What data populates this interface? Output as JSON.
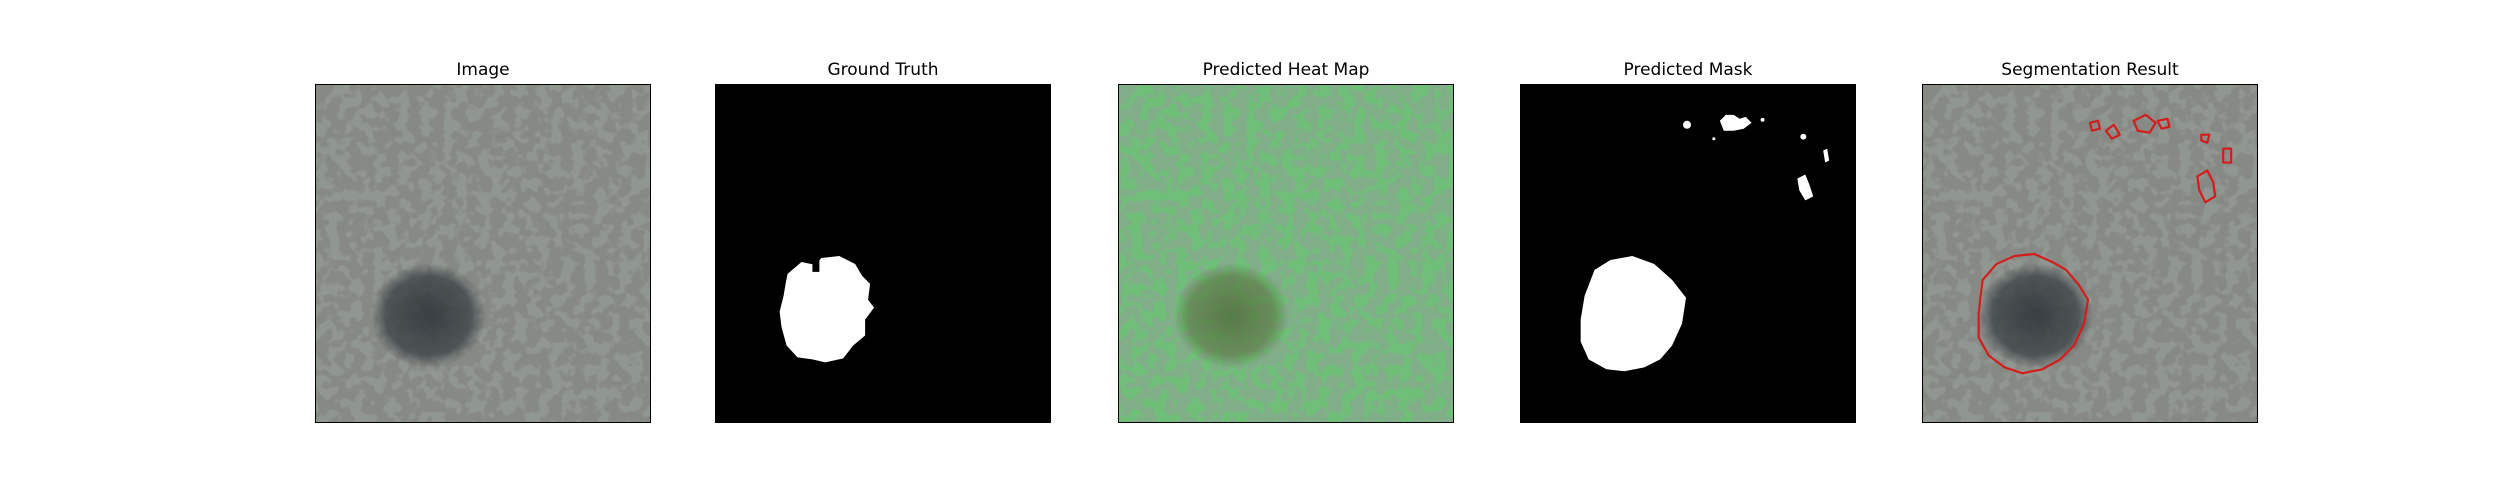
{
  "panels": [
    {
      "title": "Image"
    },
    {
      "title": "Ground Truth"
    },
    {
      "title": "Predicted Heat Map"
    },
    {
      "title": "Predicted Mask"
    },
    {
      "title": "Segmentation Result"
    }
  ],
  "colors": {
    "texture_base": "#8f958f",
    "texture_spot": "#3e3f3c",
    "defect_region": "#2c3236",
    "mask_background": "#000000",
    "mask_foreground": "#ffffff",
    "heatmap_tint": "#5fc06a",
    "contour": "#d41c1c"
  }
}
